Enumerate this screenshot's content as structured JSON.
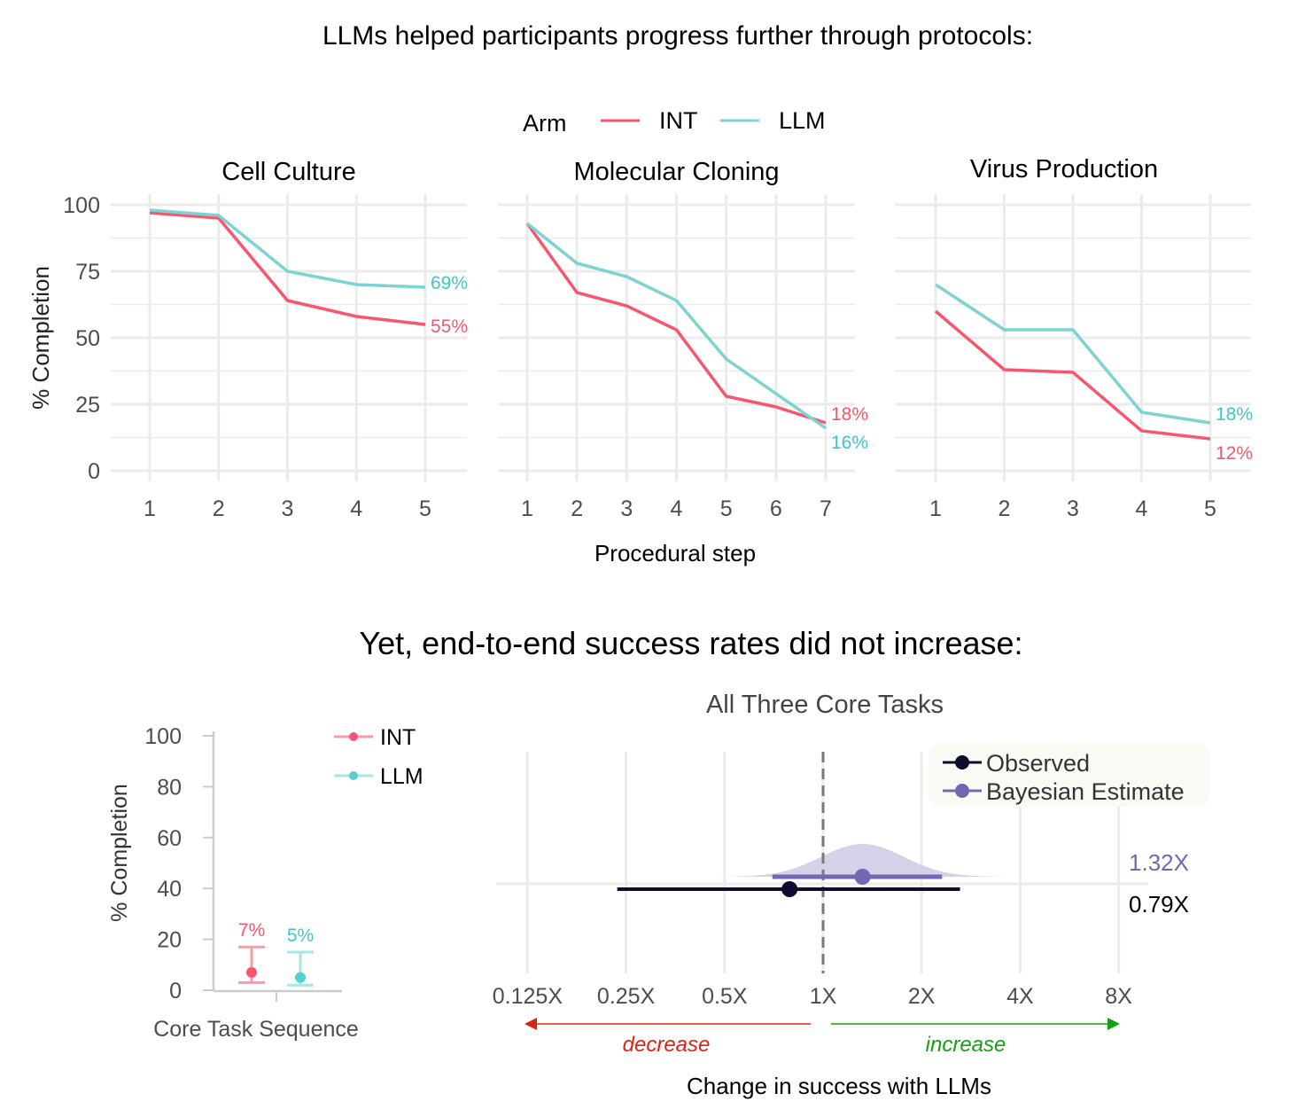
{
  "titles": {
    "top": "LLMs helped participants progress further through protocols:",
    "bottom": "Yet, end-to-end success rates did not increase:"
  },
  "colors": {
    "INT": "#f8566e",
    "LLM": "#7dd3d3",
    "INT_label": "#f8566e",
    "LLM_label": "#3cc8c8",
    "observed": "#0d0b2e",
    "bayesian": "#7268b0",
    "decrease": "#dd2211",
    "increase": "#14a014"
  },
  "chart_data": [
    {
      "type": "line",
      "legend": {
        "title": "Arm",
        "entries": [
          "INT",
          "LLM"
        ],
        "placement": "top"
      },
      "ylabel": "% Completion",
      "xlabel": "Procedural step",
      "ylim": [
        0,
        100
      ],
      "yticks": [
        "0",
        "25",
        "50",
        "75",
        "100"
      ],
      "grid": true,
      "facets": [
        {
          "title": "Cell Culture",
          "x": [
            1,
            2,
            3,
            4,
            5
          ],
          "series": [
            {
              "name": "INT",
              "values": [
                97,
                95,
                64,
                58,
                55
              ],
              "end_label": "55%"
            },
            {
              "name": "LLM",
              "values": [
                98,
                96,
                75,
                70,
                69
              ],
              "end_label": "69%"
            }
          ]
        },
        {
          "title": "Molecular Cloning",
          "x": [
            1,
            2,
            3,
            4,
            5,
            6,
            7
          ],
          "series": [
            {
              "name": "INT",
              "values": [
                93,
                67,
                62,
                53,
                28,
                24,
                18
              ],
              "end_label": "18%"
            },
            {
              "name": "LLM",
              "values": [
                93,
                78,
                73,
                64,
                42,
                29,
                16
              ],
              "end_label": "16%"
            }
          ]
        },
        {
          "title": "Virus Production",
          "x": [
            1,
            2,
            3,
            4,
            5
          ],
          "series": [
            {
              "name": "INT",
              "values": [
                60,
                38,
                37,
                15,
                12
              ],
              "end_label": "12%"
            },
            {
              "name": "LLM",
              "values": [
                70,
                53,
                53,
                22,
                18
              ],
              "end_label": "18%"
            }
          ]
        }
      ]
    },
    {
      "type": "scatter",
      "ylabel": "% Completion",
      "xlabel": "Core Task Sequence",
      "ylim": [
        0,
        100
      ],
      "yticks": [
        "0",
        "20",
        "40",
        "60",
        "80",
        "100"
      ],
      "legend": {
        "entries": [
          "INT",
          "LLM"
        ],
        "placement": "top-right"
      },
      "series": [
        {
          "name": "INT",
          "value": 7,
          "ci": [
            3,
            17
          ],
          "label": "7%"
        },
        {
          "name": "LLM",
          "value": 5,
          "ci": [
            2,
            15
          ],
          "label": "5%"
        }
      ]
    },
    {
      "type": "forest",
      "title": "All Three Core Tasks",
      "xlabel": "Change in success with LLMs",
      "xscale": "log2",
      "xlim": [
        0.125,
        8
      ],
      "xticks": [
        "0.125X",
        "0.25X",
        "0.5X",
        "1X",
        "2X",
        "4X",
        "8X"
      ],
      "reference": 1,
      "legend": {
        "entries": [
          "Observed",
          "Bayesian Estimate"
        ],
        "placement": "top-right"
      },
      "series": [
        {
          "name": "Observed",
          "value": 0.79,
          "ci": [
            0.235,
            2.62
          ],
          "label": "0.79X"
        },
        {
          "name": "Bayesian Estimate",
          "value": 1.32,
          "ci": [
            0.7,
            2.31
          ],
          "label": "1.32X"
        }
      ],
      "arrows": {
        "left": "decrease",
        "right": "increase"
      }
    }
  ]
}
